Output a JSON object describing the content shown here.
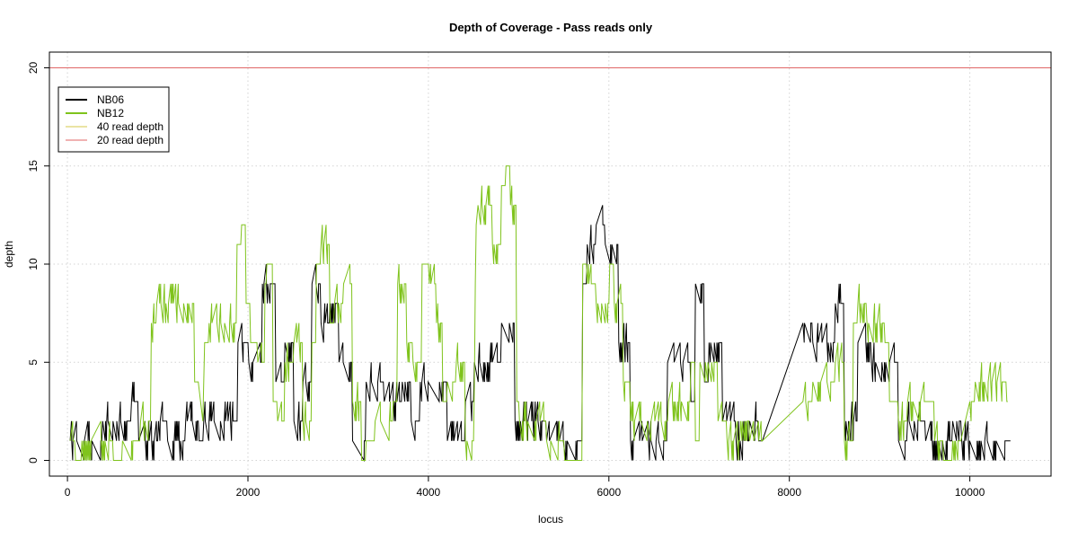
{
  "chart_data": {
    "type": "line",
    "title": "Depth of Coverage - Pass reads only",
    "xlabel": "locus",
    "ylabel": "depth",
    "xlim": [
      -200,
      10900
    ],
    "ylim": [
      -0.8,
      20.8
    ],
    "x_ticks": [
      0,
      2000,
      4000,
      6000,
      8000,
      10000
    ],
    "y_ticks": [
      0,
      5,
      10,
      15,
      20
    ],
    "x_tick_labels": [
      "0",
      "2000",
      "4000",
      "6000",
      "8000",
      "10000"
    ],
    "y_tick_labels": [
      "0",
      "5",
      "10",
      "15",
      "20"
    ],
    "grid": true,
    "legend_position": "top-left",
    "legend": [
      {
        "label": "NB06",
        "color": "#000000"
      },
      {
        "label": "NB12",
        "color": "#7fc31c"
      },
      {
        "label": "40 read depth",
        "color": "#d4c84a"
      },
      {
        "label": "20 read depth",
        "color": "#e06666"
      }
    ],
    "reference_lines": [
      {
        "name": "20 read depth",
        "y": 20,
        "color": "#e06666"
      }
    ],
    "series": [
      {
        "name": "NB06",
        "color": "#000000",
        "points": [
          [
            30,
            1
          ],
          [
            380,
            1
          ],
          [
            390,
            2
          ],
          [
            700,
            2
          ],
          [
            710,
            3
          ],
          [
            780,
            3
          ],
          [
            790,
            1
          ],
          [
            1000,
            1
          ],
          [
            1010,
            2
          ],
          [
            1100,
            2
          ],
          [
            1110,
            1
          ],
          [
            1300,
            1
          ],
          [
            1310,
            2
          ],
          [
            1450,
            2
          ],
          [
            1460,
            1
          ],
          [
            1500,
            1
          ],
          [
            1510,
            2
          ],
          [
            1880,
            2
          ],
          [
            1890,
            6
          ],
          [
            2000,
            6
          ],
          [
            2010,
            5
          ],
          [
            2150,
            5
          ],
          [
            2160,
            9
          ],
          [
            2300,
            9
          ],
          [
            2310,
            4
          ],
          [
            2400,
            4
          ],
          [
            2410,
            6
          ],
          [
            2500,
            6
          ],
          [
            2510,
            2
          ],
          [
            2600,
            2
          ],
          [
            2610,
            4
          ],
          [
            2700,
            4
          ],
          [
            2710,
            9
          ],
          [
            2800,
            9
          ],
          [
            2810,
            7
          ],
          [
            2900,
            7
          ],
          [
            2910,
            8
          ],
          [
            3000,
            8
          ],
          [
            3010,
            5
          ],
          [
            3150,
            5
          ],
          [
            3160,
            1
          ],
          [
            3300,
            1
          ],
          [
            3310,
            4
          ],
          [
            3500,
            4
          ],
          [
            3510,
            3
          ],
          [
            3700,
            3
          ],
          [
            3710,
            4
          ],
          [
            3800,
            4
          ],
          [
            3810,
            2
          ],
          [
            3900,
            2
          ],
          [
            3910,
            4
          ],
          [
            4200,
            4
          ],
          [
            4210,
            1
          ],
          [
            4400,
            1
          ],
          [
            4410,
            3
          ],
          [
            4500,
            3
          ],
          [
            4510,
            5
          ],
          [
            4800,
            5
          ],
          [
            4810,
            7
          ],
          [
            4950,
            7
          ],
          [
            4960,
            2
          ],
          [
            5300,
            2
          ],
          [
            5310,
            1
          ],
          [
            5700,
            1
          ],
          [
            5710,
            9
          ],
          [
            5750,
            9
          ],
          [
            5760,
            11
          ],
          [
            5850,
            11
          ],
          [
            5860,
            12
          ],
          [
            5950,
            12
          ],
          [
            5960,
            11
          ],
          [
            6100,
            11
          ],
          [
            6110,
            6
          ],
          [
            6230,
            6
          ],
          [
            6240,
            1
          ],
          [
            6640,
            1
          ],
          [
            6650,
            5
          ],
          [
            6900,
            5
          ],
          [
            6910,
            3
          ],
          [
            6950,
            3
          ],
          [
            6960,
            9
          ],
          [
            7050,
            9
          ],
          [
            7060,
            4
          ],
          [
            7100,
            4
          ],
          [
            7110,
            6
          ],
          [
            7250,
            6
          ],
          [
            7260,
            2
          ],
          [
            7400,
            2
          ],
          [
            7410,
            1
          ],
          [
            7550,
            1
          ],
          [
            7560,
            2
          ],
          [
            7650,
            2
          ],
          [
            7660,
            1
          ],
          [
            7700,
            1
          ],
          [
            8150,
            7
          ],
          [
            8250,
            7
          ],
          [
            8260,
            6
          ],
          [
            8500,
            6
          ],
          [
            8510,
            8
          ],
          [
            8600,
            8
          ],
          [
            8610,
            2
          ],
          [
            8750,
            2
          ],
          [
            8760,
            6
          ],
          [
            8900,
            6
          ],
          [
            8910,
            5
          ],
          [
            9200,
            5
          ],
          [
            9210,
            1
          ],
          [
            9300,
            1
          ],
          [
            9310,
            2
          ],
          [
            9500,
            2
          ],
          [
            9510,
            1
          ],
          [
            9800,
            1
          ],
          [
            9810,
            2
          ],
          [
            9900,
            2
          ],
          [
            9910,
            1
          ],
          [
            10450,
            1
          ]
        ]
      },
      {
        "name": "NB12",
        "color": "#7fc31c",
        "points": [
          [
            30,
            1
          ],
          [
            80,
            1
          ],
          [
            90,
            0
          ],
          [
            150,
            0
          ],
          [
            160,
            1
          ],
          [
            500,
            1
          ],
          [
            510,
            0
          ],
          [
            600,
            0
          ],
          [
            610,
            1
          ],
          [
            800,
            1
          ],
          [
            810,
            2
          ],
          [
            920,
            2
          ],
          [
            930,
            7
          ],
          [
            980,
            7
          ],
          [
            990,
            8
          ],
          [
            1400,
            8
          ],
          [
            1410,
            4
          ],
          [
            1450,
            4
          ],
          [
            1500,
            2
          ],
          [
            1520,
            6
          ],
          [
            1560,
            6
          ],
          [
            1570,
            7
          ],
          [
            1870,
            7
          ],
          [
            1880,
            11
          ],
          [
            1920,
            11
          ],
          [
            1930,
            12
          ],
          [
            1970,
            12
          ],
          [
            1980,
            8
          ],
          [
            2020,
            8
          ],
          [
            2030,
            6
          ],
          [
            2100,
            6
          ],
          [
            2110,
            5
          ],
          [
            2180,
            5
          ],
          [
            2190,
            9
          ],
          [
            2200,
            9
          ],
          [
            2210,
            10
          ],
          [
            2270,
            10
          ],
          [
            2280,
            3
          ],
          [
            2320,
            3
          ],
          [
            2330,
            2
          ],
          [
            2400,
            2
          ],
          [
            2410,
            5
          ],
          [
            2500,
            5
          ],
          [
            2510,
            6
          ],
          [
            2600,
            6
          ],
          [
            2610,
            2
          ],
          [
            2700,
            2
          ],
          [
            2710,
            6
          ],
          [
            2750,
            6
          ],
          [
            2760,
            10
          ],
          [
            2800,
            10
          ],
          [
            2810,
            11
          ],
          [
            2900,
            11
          ],
          [
            2910,
            7
          ],
          [
            2950,
            7
          ],
          [
            2960,
            8
          ],
          [
            3050,
            8
          ],
          [
            3060,
            9
          ],
          [
            3150,
            9
          ],
          [
            3160,
            3
          ],
          [
            3250,
            3
          ],
          [
            3260,
            0
          ],
          [
            3300,
            0
          ],
          [
            3310,
            1
          ],
          [
            3400,
            1
          ],
          [
            3410,
            2
          ],
          [
            3600,
            2
          ],
          [
            3610,
            3
          ],
          [
            3650,
            3
          ],
          [
            3660,
            9
          ],
          [
            3750,
            9
          ],
          [
            3760,
            6
          ],
          [
            3820,
            6
          ],
          [
            3830,
            5
          ],
          [
            3920,
            5
          ],
          [
            3930,
            10
          ],
          [
            4000,
            10
          ],
          [
            4010,
            9
          ],
          [
            4080,
            9
          ],
          [
            4090,
            7
          ],
          [
            4150,
            7
          ],
          [
            4160,
            3
          ],
          [
            4200,
            3
          ],
          [
            4210,
            4
          ],
          [
            4300,
            4
          ],
          [
            4310,
            5
          ],
          [
            4400,
            5
          ],
          [
            4410,
            1
          ],
          [
            4500,
            1
          ],
          [
            4510,
            4
          ],
          [
            4520,
            9
          ],
          [
            4530,
            12
          ],
          [
            4550,
            13
          ],
          [
            4700,
            13
          ],
          [
            4710,
            11
          ],
          [
            4800,
            11
          ],
          [
            4810,
            14
          ],
          [
            4850,
            14
          ],
          [
            4860,
            15
          ],
          [
            4900,
            15
          ],
          [
            4910,
            13
          ],
          [
            4970,
            13
          ],
          [
            4980,
            3
          ],
          [
            5000,
            3
          ],
          [
            5010,
            2
          ],
          [
            5300,
            2
          ],
          [
            5310,
            1
          ],
          [
            5500,
            1
          ],
          [
            5510,
            0
          ],
          [
            5700,
            0
          ],
          [
            5710,
            10
          ],
          [
            5750,
            10
          ],
          [
            5760,
            9
          ],
          [
            5850,
            9
          ],
          [
            5860,
            8
          ],
          [
            6000,
            8
          ],
          [
            6010,
            10
          ],
          [
            6050,
            10
          ],
          [
            6060,
            8
          ],
          [
            6150,
            8
          ],
          [
            6160,
            4
          ],
          [
            6230,
            4
          ],
          [
            6240,
            2
          ],
          [
            6650,
            2
          ],
          [
            6660,
            3
          ],
          [
            6900,
            3
          ],
          [
            6910,
            5
          ],
          [
            6950,
            5
          ],
          [
            6960,
            1
          ],
          [
            7000,
            1
          ],
          [
            7010,
            5
          ],
          [
            7200,
            5
          ],
          [
            7210,
            2
          ],
          [
            7300,
            2
          ],
          [
            7310,
            1
          ],
          [
            7450,
            1
          ],
          [
            7460,
            2
          ],
          [
            7550,
            2
          ],
          [
            7560,
            1
          ],
          [
            7700,
            1
          ],
          [
            8150,
            3
          ],
          [
            8250,
            3
          ],
          [
            8260,
            4
          ],
          [
            8500,
            4
          ],
          [
            8510,
            5
          ],
          [
            8600,
            5
          ],
          [
            8610,
            1
          ],
          [
            8700,
            1
          ],
          [
            8710,
            7
          ],
          [
            8750,
            7
          ],
          [
            8760,
            8
          ],
          [
            8850,
            8
          ],
          [
            8860,
            7
          ],
          [
            9050,
            7
          ],
          [
            9060,
            6
          ],
          [
            9100,
            6
          ],
          [
            9110,
            3
          ],
          [
            9200,
            3
          ],
          [
            9210,
            2
          ],
          [
            9300,
            2
          ],
          [
            9310,
            3
          ],
          [
            9600,
            3
          ],
          [
            9610,
            1
          ],
          [
            9700,
            1
          ],
          [
            9710,
            0
          ],
          [
            9800,
            0
          ],
          [
            9810,
            1
          ],
          [
            9900,
            1
          ],
          [
            10000,
            3
          ],
          [
            10050,
            3
          ],
          [
            10060,
            4
          ],
          [
            10400,
            4
          ],
          [
            10410,
            3
          ],
          [
            10420,
            3
          ]
        ]
      }
    ]
  }
}
